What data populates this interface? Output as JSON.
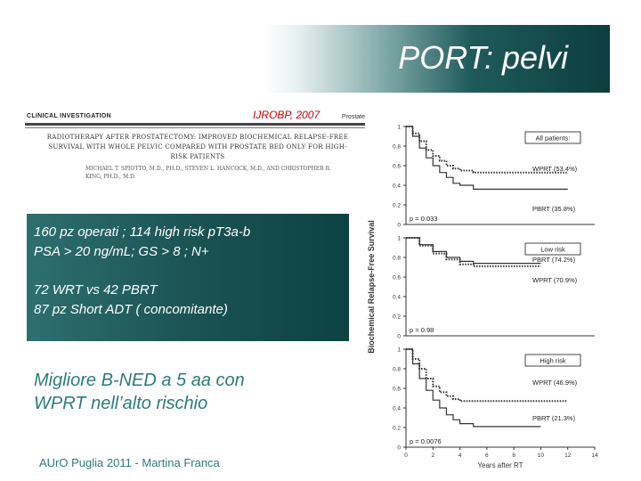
{
  "title": "PORT: pelvi",
  "reference": "IJROBP, 2007",
  "paper": {
    "section": "CLINICAL INVESTIGATION",
    "category": "Prostate",
    "title": "RADIOTHERAPY AFTER PROSTATECTOMY: IMPROVED BIOCHEMICAL RELAPSE-FREE SURVIVAL WITH WHOLE PELVIC COMPARED WITH PROSTATE BED ONLY FOR HIGH-RISK PATIENTS",
    "authors": "MICHAEL T. SPIOTTO, M.D., PH.D., STEVEN L. HANCOCK, M.D., AND CHRISTOPHER R. KING, PH.D., M.D."
  },
  "info": {
    "line1": "160 pz  operati ; 114 high risk pT3a-b",
    "line2": "PSA > 20  ng/mL; GS > 8 ; N+",
    "line3": "72 WRT vs 42 PBRT",
    "line4": "87  pz Short ADT  ( concomitante)"
  },
  "conclusion": {
    "line1": "Migliore B-NED a 5 aa con",
    "line2": "WPRT nell’alto rischio"
  },
  "footer": "AUrO Puglia 2011 - Martina Franca",
  "chart_data": {
    "type": "line",
    "ylabel": "Biochemical Relapse-Free Survival",
    "xlabel": "Years after RT",
    "x_ticks": [
      "0",
      "2",
      "4",
      "6",
      "8",
      "10",
      "12",
      "14"
    ],
    "y_ticks": [
      "0",
      "0.2",
      "0.4",
      "0.6",
      "0.8",
      "1"
    ],
    "panels": [
      {
        "label": "All patients:",
        "p_value": "p = 0.033",
        "series": [
          {
            "name": "WPRT (53.4%)",
            "style": "dotted",
            "x": [
              0,
              0.5,
              1,
              1.5,
              2,
              2.5,
              3,
              3.5,
              4,
              5,
              6,
              7,
              8,
              9,
              10,
              11,
              12
            ],
            "y": [
              1,
              0.93,
              0.85,
              0.76,
              0.7,
              0.65,
              0.6,
              0.57,
              0.55,
              0.53,
              0.53,
              0.53,
              0.53,
              0.53,
              0.53,
              0.53,
              0.53
            ]
          },
          {
            "name": "PBRT (35.8%)",
            "style": "solid",
            "x": [
              0,
              0.5,
              1,
              1.5,
              2,
              2.5,
              3,
              3.5,
              4,
              5,
              6,
              7,
              8,
              9,
              10,
              11,
              12
            ],
            "y": [
              1,
              0.9,
              0.78,
              0.68,
              0.6,
              0.53,
              0.48,
              0.42,
              0.4,
              0.36,
              0.36,
              0.36,
              0.36,
              0.36,
              0.36,
              0.36,
              0.36
            ]
          }
        ]
      },
      {
        "label": "Low risk",
        "p_value": "p = 0.98",
        "series": [
          {
            "name": "PBRT (74.2%)",
            "style": "solid",
            "x": [
              0,
              1,
              2,
              3,
              4,
              5,
              6,
              8,
              10
            ],
            "y": [
              1,
              0.93,
              0.86,
              0.8,
              0.76,
              0.74,
              0.74,
              0.74,
              0.74
            ]
          },
          {
            "name": "WPRT (70.9%)",
            "style": "dotted",
            "x": [
              0,
              1,
              2,
              3,
              4,
              5,
              6,
              8,
              10
            ],
            "y": [
              1,
              0.92,
              0.84,
              0.78,
              0.73,
              0.71,
              0.71,
              0.71,
              0.71
            ]
          }
        ]
      },
      {
        "label": "High risk",
        "p_value": "p = 0.0076",
        "series": [
          {
            "name": "WPRT (46.9%)",
            "style": "dotted",
            "x": [
              0,
              0.5,
              1,
              1.5,
              2,
              2.5,
              3,
              3.5,
              4,
              5,
              6,
              8,
              10,
              12
            ],
            "y": [
              1,
              0.9,
              0.8,
              0.7,
              0.62,
              0.56,
              0.52,
              0.49,
              0.47,
              0.47,
              0.47,
              0.47,
              0.47,
              0.47
            ]
          },
          {
            "name": "PBRT (21.3%)",
            "style": "solid",
            "x": [
              0,
              0.5,
              1,
              1.5,
              2,
              2.5,
              3,
              3.5,
              4,
              5,
              6,
              8,
              10
            ],
            "y": [
              1,
              0.85,
              0.7,
              0.58,
              0.48,
              0.4,
              0.33,
              0.28,
              0.24,
              0.21,
              0.21,
              0.21,
              0.21
            ]
          }
        ]
      }
    ],
    "colors": {
      "line": "#333333",
      "box": "#444444"
    }
  }
}
